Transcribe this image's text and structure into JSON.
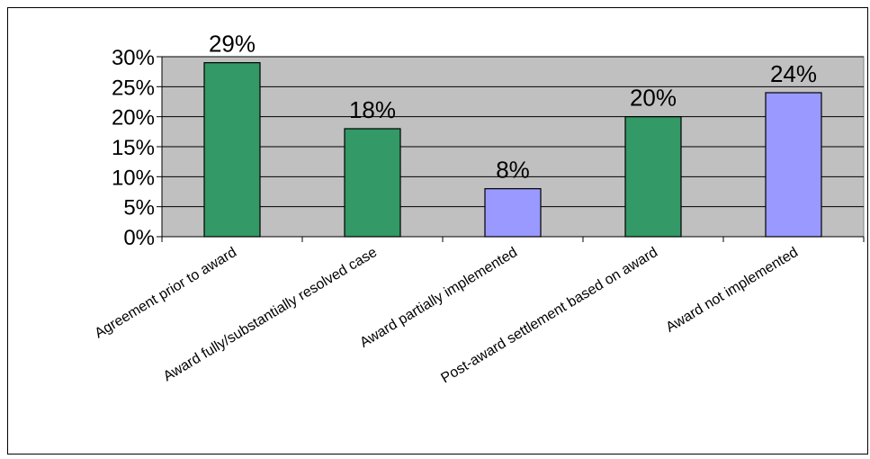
{
  "chart_data": {
    "type": "bar",
    "title": "",
    "xlabel": "",
    "ylabel": "",
    "ylim": [
      0,
      30
    ],
    "yticks": [
      "0%",
      "5%",
      "10%",
      "15%",
      "20%",
      "25%",
      "30%"
    ],
    "grid": true,
    "legend": "none",
    "categories": [
      "Agreement prior to award",
      "Award fully/substantially resolved case",
      "Award partially implemented",
      "Post-award settlement based on award",
      "Award not implemented"
    ],
    "values": [
      29,
      18,
      8,
      20,
      24
    ],
    "data_labels": [
      "29%",
      "18%",
      "8%",
      "20%",
      "24%"
    ],
    "bar_colors": [
      "#339966",
      "#339966",
      "#9999FF",
      "#339966",
      "#9999FF"
    ],
    "plot_background": "#C0C0C0"
  }
}
